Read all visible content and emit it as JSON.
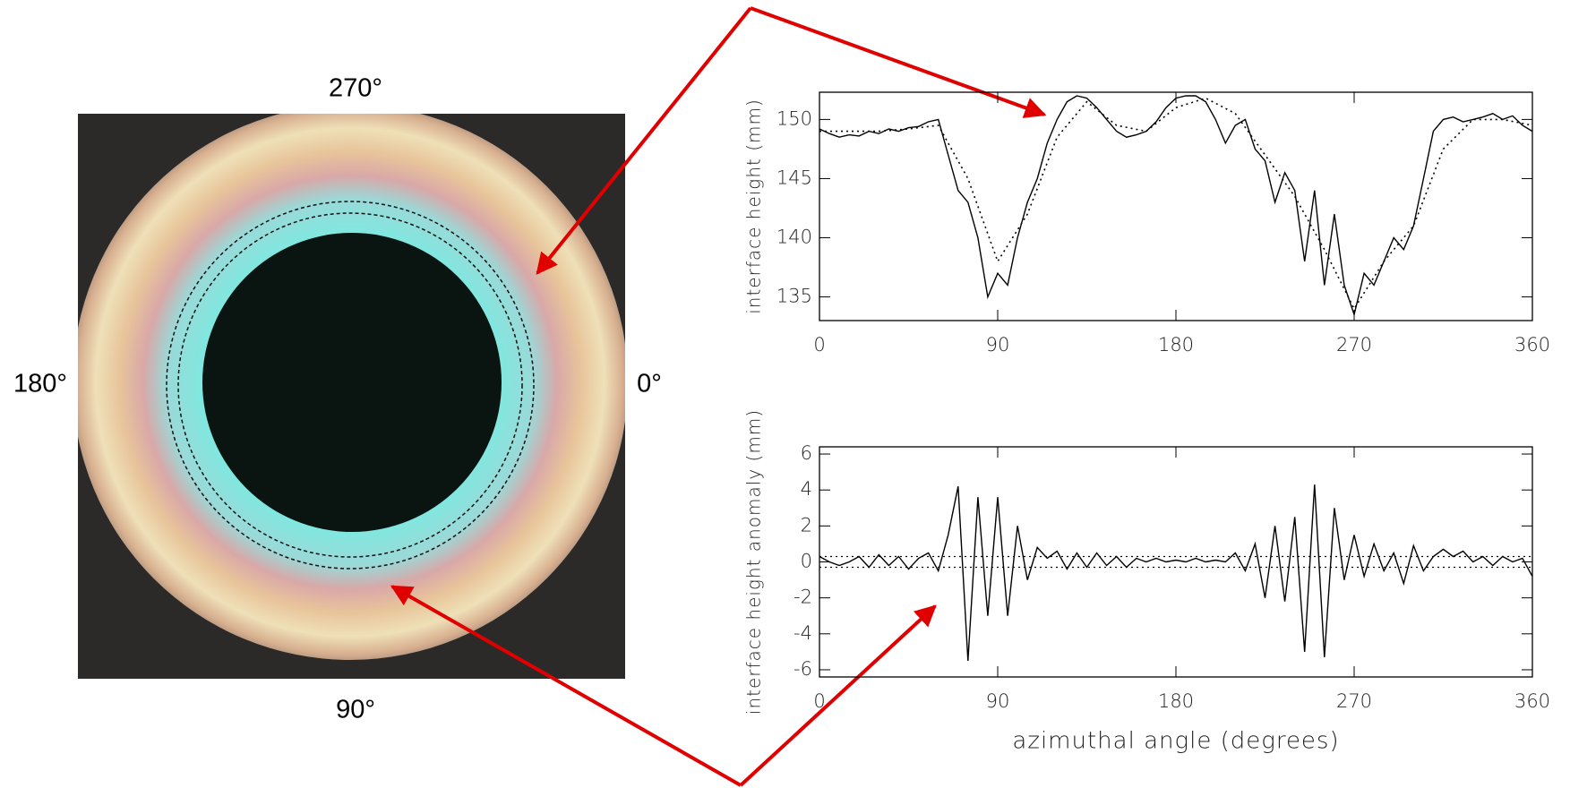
{
  "photo": {
    "labels": {
      "top": "270°",
      "left": "180°",
      "right": "0°",
      "bottom": "90°"
    }
  },
  "chart_data": [
    {
      "type": "line",
      "ylabel": "interface height (mm)",
      "xlim": [
        0,
        360
      ],
      "xticks": [
        0,
        90,
        180,
        270,
        360
      ],
      "ylim": [
        133,
        152.3
      ],
      "yticks": [
        135,
        140,
        145,
        150
      ],
      "series": [
        {
          "color": "#000000",
          "dash": "solid",
          "x": [
            0,
            5,
            10,
            15,
            20,
            25,
            30,
            35,
            40,
            45,
            50,
            55,
            60,
            65,
            70,
            75,
            80,
            85,
            90,
            95,
            100,
            105,
            110,
            115,
            120,
            125,
            130,
            135,
            140,
            145,
            150,
            155,
            160,
            165,
            170,
            175,
            180,
            185,
            190,
            195,
            200,
            205,
            210,
            215,
            220,
            225,
            230,
            235,
            240,
            245,
            250,
            255,
            260,
            265,
            270,
            275,
            280,
            285,
            290,
            295,
            300,
            305,
            310,
            315,
            320,
            325,
            330,
            335,
            340,
            345,
            350,
            355,
            360
          ],
          "values": [
            149.2,
            148.8,
            148.5,
            148.7,
            148.6,
            149,
            148.8,
            149.2,
            149,
            149.3,
            149.4,
            149.8,
            150,
            147,
            144,
            143,
            140,
            135,
            137,
            136,
            140,
            143,
            145,
            148,
            150,
            151.5,
            152,
            151.8,
            151,
            150,
            149,
            148.5,
            148.7,
            149,
            149.8,
            151,
            151.8,
            152,
            152,
            151.5,
            150,
            148,
            149.5,
            150,
            147.5,
            146.5,
            143,
            145.5,
            144,
            138,
            144,
            136,
            142,
            136,
            133.5,
            137,
            136,
            138,
            140,
            139,
            141,
            145,
            149,
            150,
            150.2,
            149.8,
            150,
            150.2,
            150.5,
            150,
            150.3,
            149.5,
            149
          ]
        },
        {
          "color": "#000000",
          "dash": "dotted",
          "x": [
            0,
            15,
            30,
            45,
            60,
            75,
            90,
            105,
            120,
            135,
            150,
            165,
            180,
            195,
            210,
            225,
            240,
            255,
            270,
            285,
            300,
            315,
            330,
            345,
            360
          ],
          "values": [
            149,
            149,
            149,
            149.2,
            149.5,
            145,
            138,
            142,
            148.5,
            151.5,
            149.5,
            149,
            151,
            151.8,
            150.5,
            147,
            143.5,
            139,
            134,
            138,
            141,
            147.5,
            150,
            150,
            149.5
          ]
        }
      ]
    },
    {
      "type": "line",
      "ylabel": "interface height anomaly (mm)",
      "xlabel": "azimuthal angle (degrees)",
      "xlim": [
        0,
        360
      ],
      "xticks": [
        0,
        90,
        180,
        270,
        360
      ],
      "ylim": [
        -6.4,
        6.4
      ],
      "yticks": [
        -6,
        -4,
        -2,
        0,
        2,
        4,
        6
      ],
      "hlines": [
        0.3,
        -0.3
      ],
      "series": [
        {
          "color": "#000000",
          "dash": "solid",
          "x": [
            0,
            5,
            10,
            15,
            20,
            25,
            30,
            35,
            40,
            45,
            50,
            55,
            60,
            65,
            70,
            75,
            80,
            85,
            90,
            95,
            100,
            105,
            110,
            115,
            120,
            125,
            130,
            135,
            140,
            145,
            150,
            155,
            160,
            165,
            170,
            175,
            180,
            185,
            190,
            195,
            200,
            205,
            210,
            215,
            220,
            225,
            230,
            235,
            240,
            245,
            250,
            255,
            260,
            265,
            270,
            275,
            280,
            285,
            290,
            295,
            300,
            305,
            310,
            315,
            320,
            325,
            330,
            335,
            340,
            345,
            350,
            355,
            360
          ],
          "values": [
            0.3,
            0,
            -0.2,
            0,
            0.3,
            -0.3,
            0.4,
            -0.2,
            0.3,
            -0.4,
            0.2,
            0.5,
            -0.5,
            1.5,
            4.2,
            -5.5,
            3.6,
            -3,
            3.6,
            -3,
            2,
            -1,
            0.8,
            0.2,
            0.6,
            -0.4,
            0.5,
            -0.3,
            0.5,
            -0.2,
            0.3,
            -0.3,
            0.2,
            0,
            0.2,
            0,
            0.1,
            0,
            0.2,
            0,
            0.1,
            0,
            0.5,
            -0.5,
            1,
            -2,
            2,
            -2.2,
            2.5,
            -5,
            4.3,
            -5.3,
            3,
            -1,
            1.5,
            -0.8,
            1,
            -0.5,
            0.5,
            -1.2,
            0.9,
            -0.5,
            0.3,
            0.7,
            0.3,
            0.6,
            0,
            0.3,
            -0.2,
            0.3,
            0,
            0.2,
            -0.8
          ]
        }
      ]
    }
  ]
}
